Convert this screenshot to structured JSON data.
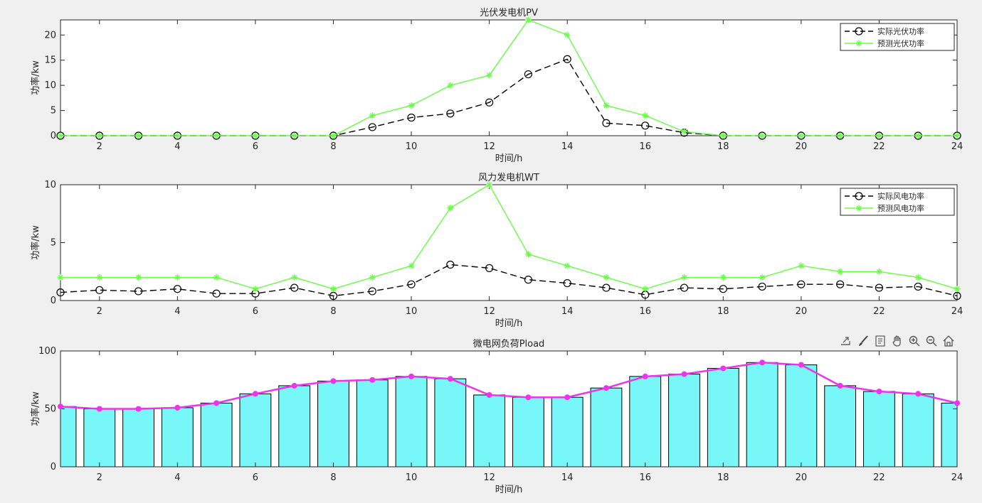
{
  "chart_data": [
    {
      "type": "line",
      "title": "光伏发电机PV",
      "xlabel": "时间/h",
      "ylabel": "功率/kw",
      "xlim": [
        1,
        24
      ],
      "ylim": [
        0,
        23
      ],
      "xticks": [
        2,
        4,
        6,
        8,
        10,
        12,
        14,
        16,
        18,
        20,
        22,
        24
      ],
      "yticks": [
        0,
        5,
        10,
        15,
        20
      ],
      "grid": false,
      "legend": "top-right",
      "x": [
        1,
        2,
        3,
        4,
        5,
        6,
        7,
        8,
        9,
        10,
        11,
        12,
        13,
        14,
        15,
        16,
        17,
        18,
        19,
        20,
        21,
        22,
        23,
        24
      ],
      "series": [
        {
          "name": "实际光伏功率",
          "color": "#000000",
          "style": "dashed",
          "marker": "circle",
          "values": [
            0,
            0,
            0,
            0,
            0,
            0,
            0,
            0,
            1.7,
            3.6,
            4.4,
            6.6,
            12.2,
            15.2,
            2.5,
            2.0,
            0.6,
            0,
            0,
            0,
            0,
            0,
            0,
            0
          ]
        },
        {
          "name": "预测光伏功率",
          "color": "#66ff44",
          "style": "solid",
          "marker": "star",
          "values": [
            0,
            0,
            0,
            0,
            0,
            0,
            0,
            0,
            4,
            6,
            10,
            12,
            23,
            20,
            6,
            4,
            0.8,
            0,
            0,
            0,
            0,
            0,
            0,
            0
          ]
        }
      ]
    },
    {
      "type": "line",
      "title": "风力发电机WT",
      "xlabel": "时间/h",
      "ylabel": "功率/kw",
      "xlim": [
        1,
        24
      ],
      "ylim": [
        0,
        10
      ],
      "xticks": [
        2,
        4,
        6,
        8,
        10,
        12,
        14,
        16,
        18,
        20,
        22,
        24
      ],
      "yticks": [
        0,
        5,
        10
      ],
      "grid": false,
      "legend": "top-right",
      "x": [
        1,
        2,
        3,
        4,
        5,
        6,
        7,
        8,
        9,
        10,
        11,
        12,
        13,
        14,
        15,
        16,
        17,
        18,
        19,
        20,
        21,
        22,
        23,
        24
      ],
      "series": [
        {
          "name": "实际风电功率",
          "color": "#000000",
          "style": "dashed",
          "marker": "circle",
          "values": [
            0.7,
            0.9,
            0.8,
            1.0,
            0.6,
            0.6,
            1.1,
            0.4,
            0.8,
            1.4,
            3.1,
            2.8,
            1.8,
            1.5,
            1.1,
            0.5,
            1.1,
            1.0,
            1.2,
            1.4,
            1.4,
            1.1,
            1.2,
            0.4
          ]
        },
        {
          "name": "预测风电功率",
          "color": "#66ff44",
          "style": "solid",
          "marker": "star",
          "values": [
            2,
            2,
            2,
            2,
            2,
            1,
            2,
            1,
            2,
            3,
            8,
            10,
            4,
            3,
            2,
            1,
            2,
            2,
            2,
            3,
            2.5,
            2.5,
            2,
            1
          ]
        }
      ]
    },
    {
      "type": "bar",
      "title": "微电网负荷Pload",
      "xlabel": "时间/h",
      "ylabel": "功率/kw",
      "xlim": [
        1,
        24
      ],
      "ylim": [
        0,
        100
      ],
      "xticks": [
        2,
        4,
        6,
        8,
        10,
        12,
        14,
        16,
        18,
        20,
        22,
        24
      ],
      "yticks": [
        0,
        50,
        100
      ],
      "grid": false,
      "x": [
        1,
        2,
        3,
        4,
        5,
        6,
        7,
        8,
        9,
        10,
        11,
        12,
        13,
        14,
        15,
        16,
        17,
        18,
        19,
        20,
        21,
        22,
        23,
        24
      ],
      "bar_color": "#77f7f7",
      "line_color": "#ee33ee",
      "values": [
        52,
        50,
        50,
        51,
        55,
        63,
        70,
        74,
        75,
        78,
        76,
        62,
        60,
        60,
        68,
        78,
        80,
        85,
        90,
        88,
        70,
        65,
        63,
        55
      ]
    }
  ],
  "toolbar": {
    "icons": [
      "export-icon",
      "brush-icon",
      "data-tip-icon",
      "pan-icon",
      "zoom-in-icon",
      "zoom-out-icon",
      "home-icon"
    ]
  }
}
